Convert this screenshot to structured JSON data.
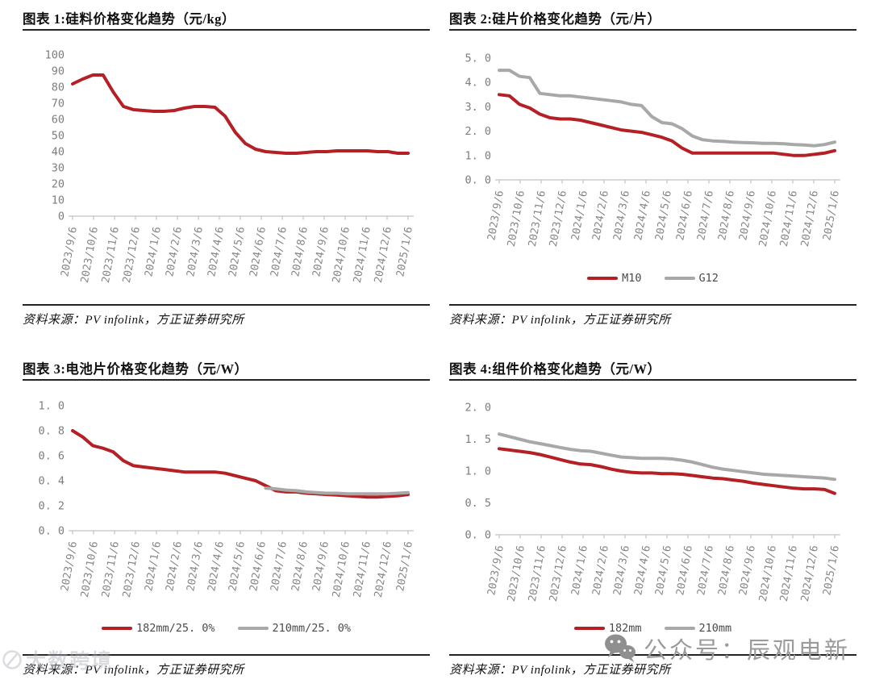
{
  "page": {
    "background": "#ffffff"
  },
  "colors": {
    "series_red": "#b42025",
    "series_gray": "#a8a8a8",
    "axis_line": "#c3c3c3",
    "tick_label": "#868686",
    "rule": "#242424",
    "watermark_gray": "#9b9b9b"
  },
  "source_text": "资料来源：PV infolink，方正证券研究所",
  "watermarks": {
    "wechat": {
      "icon": "wechat-icon",
      "text": "公众号：辰观电新"
    },
    "corner": {
      "icon": "circle-logo-icon",
      "text": "大数跨境"
    }
  },
  "chart_data": [
    {
      "type": "line",
      "title": "图表 1:硅料价格变化趋势（元/kg）",
      "ylim": [
        0,
        100
      ],
      "grid": false,
      "legend": false,
      "y_tick_labels": [
        "100",
        "90",
        "80",
        "70",
        "60",
        "50",
        "40",
        "30",
        "20",
        "10",
        "0"
      ],
      "x_tick_labels": [
        "2023/9/6",
        "2023/10/6",
        "2023/11/6",
        "2023/12/6",
        "2024/1/6",
        "2024/2/6",
        "2024/3/6",
        "2024/4/6",
        "2024/5/6",
        "2024/6/6",
        "2024/7/6",
        "2024/8/6",
        "2024/9/6",
        "2024/10/6",
        "2024/11/6",
        "2024/12/6",
        "2025/1/6"
      ],
      "series": [
        {
          "name": "",
          "color": "#b42025",
          "values": [
            82,
            85,
            87.5,
            87.5,
            77,
            68,
            66,
            65.5,
            65,
            65,
            65.5,
            67,
            68,
            68,
            67.5,
            62,
            52,
            45,
            41.5,
            40,
            39.5,
            39,
            39,
            39.5,
            40,
            40,
            40.5,
            40.5,
            40.5,
            40.5,
            40,
            40,
            39,
            39
          ]
        }
      ]
    },
    {
      "type": "line",
      "title": "图表 2:硅片价格变化趋势（元/片）",
      "ylim": [
        0,
        5
      ],
      "grid": false,
      "legend_position": "bottom",
      "y_tick_labels": [
        "5. 0",
        "4. 0",
        "3. 0",
        "2. 0",
        "1. 0",
        "0. 0"
      ],
      "x_tick_labels": [
        "2023/9/6",
        "2023/10/6",
        "2023/11/6",
        "2023/12/6",
        "2024/1/6",
        "2024/2/6",
        "2024/3/6",
        "2024/4/6",
        "2024/5/6",
        "2024/6/6",
        "2024/7/6",
        "2024/8/6",
        "2024/9/6",
        "2024/10/6",
        "2024/11/6",
        "2024/12/6",
        "2025/1/6"
      ],
      "series": [
        {
          "name": "M10",
          "color": "#b42025",
          "values": [
            3.5,
            3.45,
            3.1,
            2.95,
            2.7,
            2.55,
            2.5,
            2.5,
            2.45,
            2.35,
            2.25,
            2.15,
            2.05,
            2.0,
            1.95,
            1.85,
            1.75,
            1.6,
            1.3,
            1.1,
            1.1,
            1.1,
            1.1,
            1.1,
            1.1,
            1.1,
            1.1,
            1.1,
            1.05,
            1.0,
            1.0,
            1.05,
            1.1,
            1.2
          ]
        },
        {
          "name": "G12",
          "color": "#a8a8a8",
          "values": [
            4.5,
            4.5,
            4.25,
            4.2,
            3.55,
            3.5,
            3.45,
            3.45,
            3.4,
            3.35,
            3.3,
            3.25,
            3.2,
            3.1,
            3.05,
            2.6,
            2.35,
            2.3,
            2.1,
            1.8,
            1.65,
            1.6,
            1.58,
            1.55,
            1.53,
            1.52,
            1.5,
            1.5,
            1.48,
            1.45,
            1.43,
            1.4,
            1.45,
            1.55
          ]
        }
      ]
    },
    {
      "type": "line",
      "title": "图表 3:电池片价格变化趋势（元/W）",
      "ylim": [
        0,
        1
      ],
      "grid": false,
      "legend_position": "bottom",
      "y_tick_labels": [
        "1. 0",
        "0. 8",
        "0. 6",
        "0. 4",
        "0. 2",
        "0. 0"
      ],
      "x_tick_labels": [
        "2023/9/6",
        "2023/10/6",
        "2023/11/6",
        "2023/12/6",
        "2024/1/6",
        "2024/2/6",
        "2024/3/6",
        "2024/4/6",
        "2024/5/6",
        "2024/6/6",
        "2024/7/6",
        "2024/8/6",
        "2024/9/6",
        "2024/10/6",
        "2024/11/6",
        "2024/12/6",
        "2025/1/6"
      ],
      "series": [
        {
          "name": "182mm/25. 0%",
          "color": "#b42025",
          "values": [
            0.8,
            0.75,
            0.68,
            0.66,
            0.63,
            0.56,
            0.52,
            0.51,
            0.5,
            0.49,
            0.48,
            0.47,
            0.47,
            0.47,
            0.47,
            0.46,
            0.44,
            0.42,
            0.4,
            0.36,
            0.32,
            0.31,
            0.31,
            0.3,
            0.295,
            0.29,
            0.285,
            0.28,
            0.275,
            0.27,
            0.27,
            0.275,
            0.28,
            0.29
          ]
        },
        {
          "name": "210mm/25. 0%",
          "color": "#a8a8a8",
          "values": [
            null,
            null,
            null,
            null,
            null,
            null,
            null,
            null,
            null,
            null,
            null,
            null,
            null,
            null,
            null,
            null,
            null,
            null,
            null,
            0.34,
            0.335,
            0.325,
            0.32,
            0.31,
            0.305,
            0.3,
            0.3,
            0.295,
            0.295,
            0.295,
            0.295,
            0.295,
            0.3,
            0.305
          ]
        }
      ]
    },
    {
      "type": "line",
      "title": "图表 4:组件价格变化趋势（元/W）",
      "ylim": [
        0,
        2
      ],
      "grid": false,
      "legend_position": "bottom",
      "y_tick_labels": [
        "2. 0",
        "1. 5",
        "1. 0",
        "0. 5",
        "0. 0"
      ],
      "x_tick_labels": [
        "2023/9/6",
        "2023/10/6",
        "2023/11/6",
        "2023/12/6",
        "2024/1/6",
        "2024/2/6",
        "2024/3/6",
        "2024/4/6",
        "2024/5/6",
        "2024/6/6",
        "2024/7/6",
        "2024/8/6",
        "2024/9/6",
        "2024/10/6",
        "2024/11/6",
        "2024/12/6",
        "2025/1/6"
      ],
      "series": [
        {
          "name": "182mm",
          "color": "#b42025",
          "values": [
            1.35,
            1.33,
            1.31,
            1.29,
            1.26,
            1.22,
            1.18,
            1.14,
            1.11,
            1.1,
            1.07,
            1.03,
            1.0,
            0.98,
            0.97,
            0.97,
            0.96,
            0.96,
            0.95,
            0.93,
            0.91,
            0.89,
            0.88,
            0.86,
            0.84,
            0.81,
            0.79,
            0.77,
            0.75,
            0.73,
            0.72,
            0.72,
            0.71,
            0.65
          ]
        },
        {
          "name": "210mm",
          "color": "#a8a8a8",
          "values": [
            1.58,
            1.54,
            1.5,
            1.46,
            1.43,
            1.4,
            1.37,
            1.34,
            1.32,
            1.31,
            1.28,
            1.25,
            1.22,
            1.21,
            1.2,
            1.2,
            1.2,
            1.19,
            1.17,
            1.14,
            1.1,
            1.06,
            1.03,
            1.01,
            0.99,
            0.97,
            0.95,
            0.94,
            0.93,
            0.92,
            0.91,
            0.9,
            0.89,
            0.87
          ]
        }
      ]
    }
  ]
}
